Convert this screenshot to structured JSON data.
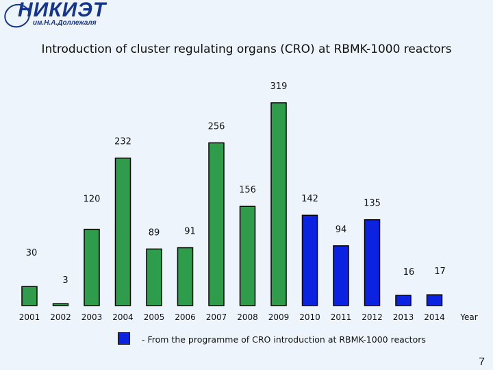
{
  "logo": {
    "text": "НИКИЭТ",
    "subtitle": "им.Н.А.Доллежаля"
  },
  "title": "Introduction of cluster regulating organs (CRO) at RBMK-1000 reactors",
  "chart_data": {
    "type": "bar",
    "title": "Introduction of cluster regulating organs (CRO) at RBMK-1000 reactors",
    "xlabel": "Year",
    "ylabel": "",
    "categories": [
      "2001",
      "2002",
      "2003",
      "2004",
      "2005",
      "2006",
      "2007",
      "2008",
      "2009",
      "2010",
      "2011",
      "2012",
      "2013",
      "2014"
    ],
    "values": [
      30,
      3,
      120,
      232,
      89,
      91,
      256,
      156,
      319,
      142,
      94,
      135,
      16,
      17
    ],
    "planned": [
      false,
      false,
      false,
      false,
      false,
      false,
      false,
      false,
      false,
      true,
      true,
      true,
      true,
      true
    ],
    "ylim": [
      0,
      330
    ],
    "grid": false,
    "colors": {
      "actual": "#2e9c4a",
      "planned": "#0b22e0"
    }
  },
  "legend": {
    "text": "- From the programme of CRO introduction at RBMK-1000 reactors"
  },
  "page_number": "7"
}
